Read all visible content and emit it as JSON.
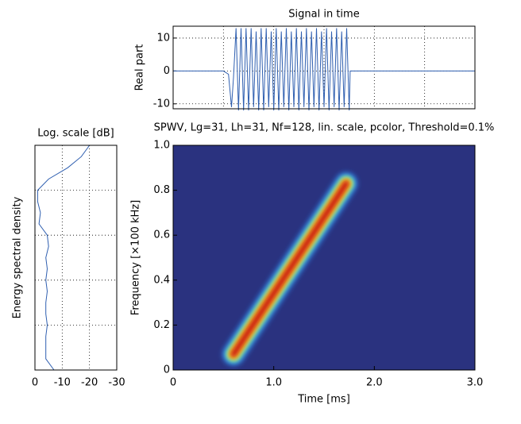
{
  "chart_data": [
    {
      "type": "line",
      "title": "Signal in time",
      "ylabel": "Real part",
      "color": "#2f5fb0",
      "x": [
        0,
        0.5,
        0.55,
        0.58,
        0.6,
        0.625,
        0.65,
        0.675,
        0.7,
        0.725,
        0.75,
        0.775,
        0.8,
        0.825,
        0.85,
        0.875,
        0.9,
        0.925,
        0.95,
        0.975,
        1.0,
        1.025,
        1.05,
        1.075,
        1.1,
        1.125,
        1.15,
        1.175,
        1.2,
        1.225,
        1.25,
        1.275,
        1.3,
        1.325,
        1.35,
        1.375,
        1.4,
        1.425,
        1.45,
        1.475,
        1.5,
        1.525,
        1.55,
        1.575,
        1.6,
        1.625,
        1.65,
        1.675,
        1.7,
        1.725,
        1.75,
        1.76,
        3.0
      ],
      "values": [
        0,
        0,
        -1,
        -11,
        -2,
        13,
        -12,
        13,
        -12,
        13,
        -12,
        13,
        -11,
        12,
        -12,
        13,
        -12,
        13,
        -11,
        12,
        -12,
        13,
        -12,
        12,
        -11,
        13,
        -12,
        12,
        -11,
        13,
        -12,
        12,
        -11,
        13,
        -12,
        12,
        -11,
        13,
        -12,
        12,
        -11,
        13,
        -12,
        12,
        -11,
        13,
        -12,
        12,
        -11,
        13,
        -12,
        0,
        0
      ],
      "xlim": [
        0,
        3
      ],
      "ylim": [
        -11.5,
        13.6
      ],
      "yticks": [
        -10,
        0,
        10
      ],
      "xticks": [
        0.5,
        1,
        1.5,
        2,
        2.5
      ],
      "grid": true
    },
    {
      "type": "line",
      "orientation": "horizontal",
      "title": "Log. scale [dB]",
      "ylabel": "Energy spectral density",
      "color": "#2f5fb0",
      "y": [
        0,
        0.05,
        0.1,
        0.15,
        0.2,
        0.25,
        0.3,
        0.35,
        0.4,
        0.45,
        0.5,
        0.55,
        0.6,
        0.65,
        0.7,
        0.75,
        0.8,
        0.85,
        0.9,
        0.95,
        1.0
      ],
      "values": [
        -7,
        -4,
        -4,
        -4,
        -4.5,
        -4,
        -4,
        -4.5,
        -4,
        -4.5,
        -4,
        -5,
        -4.5,
        -1.5,
        -2,
        -1,
        -1,
        -5,
        -12,
        -17,
        -20
      ],
      "xlim": [
        0,
        -30
      ],
      "xticks": [
        0,
        -10,
        -20,
        -30
      ],
      "ylim": [
        0,
        1
      ],
      "yticks": [
        0.2,
        0.4,
        0.6,
        0.8
      ],
      "grid": true
    },
    {
      "type": "heatmap",
      "title": "SPWV, Lg=31, Lh=31, Nf=128, lin. scale, pcolor, Threshold=0.1%",
      "xlabel": "Time [ms]",
      "ylabel": "Frequency [×100 kHz]",
      "ridge": {
        "x": [
          0.6,
          1.72
        ],
        "y": [
          0.07,
          0.83
        ]
      },
      "background": "#2a327f",
      "colormap": [
        "#2f62c0",
        "#3cc6ea",
        "#c4f25a",
        "#f8a020",
        "#c81a10"
      ],
      "xlim": [
        0,
        3
      ],
      "ylim": [
        0,
        1
      ],
      "xticks": [
        0,
        {
          "value": 1,
          "label": "1.0"
        },
        {
          "value": 2,
          "label": "2.0"
        },
        {
          "value": 3,
          "label": "3.0"
        }
      ],
      "yticks": [
        0,
        0.2,
        0.4,
        0.6,
        0.8,
        {
          "value": 1,
          "label": "1.0"
        }
      ]
    }
  ]
}
